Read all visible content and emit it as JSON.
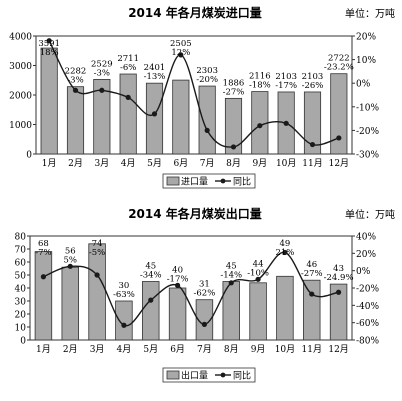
{
  "colors": {
    "bar": "#a8a8a8",
    "bar_stroke": "#333333",
    "line": "#1a1a1a",
    "frame": "#333333"
  },
  "chart_data": [
    {
      "type": "bar",
      "title": "2014 年各月煤炭进口量",
      "unit": "单位：万吨",
      "categories": [
        "1月",
        "2月",
        "3月",
        "4月",
        "5月",
        "6月",
        "7月",
        "8月",
        "9月",
        "10月",
        "11月",
        "12月"
      ],
      "y_ticks": [
        "0",
        "1000",
        "2000",
        "3000",
        "4000"
      ],
      "y_right_ticks": [
        "-30%",
        "-20%",
        "-10%",
        "0%",
        "10%",
        "20%"
      ],
      "ylim": [
        0,
        4000
      ],
      "y2lim": [
        -30,
        20
      ],
      "series": [
        {
          "name": "进口量",
          "type": "bar",
          "values": [
            3591,
            2282,
            2529,
            2711,
            2401,
            2505,
            2303,
            1886,
            2116,
            2103,
            2103,
            2722
          ],
          "labels": [
            "3591",
            "2282",
            "2529",
            "2711",
            "2401",
            "2505",
            "2303",
            "1886",
            "2116",
            "2103",
            "2103",
            "2722"
          ]
        },
        {
          "name": "同比",
          "type": "line",
          "values": [
            18,
            -3,
            -3,
            -6,
            -13,
            12,
            -20,
            -27,
            -18,
            -17,
            -26,
            -23.2
          ],
          "labels": [
            "18%",
            "-3%",
            "-3%",
            "-6%",
            "-13%",
            "12%",
            "-20%",
            "-27%",
            "-18%",
            "-17%",
            "-26%",
            "-23.2%"
          ]
        }
      ]
    },
    {
      "type": "bar",
      "title": "2014 年各月煤炭出口量",
      "unit": "单位：万吨",
      "categories": [
        "1月",
        "2月",
        "3月",
        "4月",
        "5月",
        "6月",
        "7月",
        "8月",
        "9月",
        "10月",
        "11月",
        "12月"
      ],
      "y_ticks": [
        "0",
        "10",
        "20",
        "30",
        "40",
        "50",
        "60",
        "70",
        "80"
      ],
      "y_right_ticks": [
        "-80%",
        "-60%",
        "-40%",
        "-20%",
        "0%",
        "20%",
        "40%"
      ],
      "ylim": [
        0,
        80
      ],
      "y2lim": [
        -80,
        40
      ],
      "series": [
        {
          "name": "出口量",
          "type": "bar",
          "values": [
            68,
            56,
            74,
            30,
            45,
            40,
            31,
            45,
            44,
            49,
            46,
            43
          ],
          "labels": [
            "68",
            "56",
            "74",
            "30",
            "45",
            "40",
            "31",
            "45",
            "44",
            "49",
            "46",
            "43"
          ]
        },
        {
          "name": "同比",
          "type": "line",
          "values": [
            -7,
            5,
            -5,
            -63,
            -34,
            -17,
            -62,
            -14,
            -10,
            21,
            -27,
            -24.9
          ],
          "labels": [
            "-7%",
            "5%",
            "-5%",
            "-63%",
            "-34%",
            "-17%",
            "-62%",
            "-14%",
            "-10%",
            "21%",
            "-27%",
            "-24.9%"
          ]
        }
      ]
    }
  ]
}
